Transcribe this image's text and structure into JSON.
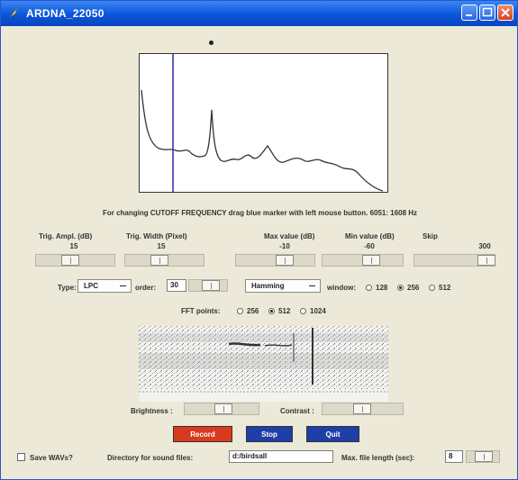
{
  "window": {
    "title": "ARDNA_22050",
    "colors": {
      "titlebar": "#0a55d8",
      "body": "#ece9d8",
      "marker": "#3b35a8"
    }
  },
  "spectrum": {
    "marker_dot_icon": "dot-icon",
    "hint": "For changing CUTOFF FREQUENCY drag blue marker with left mouse button.  6051:  1608 Hz"
  },
  "sliders": [
    {
      "label": "Trig. Ampl. (dB)",
      "value": "15"
    },
    {
      "label": "Trig. Width (Pixel)",
      "value": "15"
    },
    {
      "label": "Max value (dB)",
      "value": "-10"
    },
    {
      "label": "Min value (dB)",
      "value": "-60"
    },
    {
      "label": "Skip",
      "value": "300"
    }
  ],
  "lpc_row": {
    "type_label": "Type:",
    "type_value": "LPC",
    "order_label": "order:",
    "order_value": "30",
    "window_value": "Hamming",
    "window_label": "window:",
    "window_options": [
      "128",
      "256",
      "512"
    ],
    "window_selected": "256"
  },
  "fft": {
    "label": "FFT points:",
    "options": [
      "256",
      "512",
      "1024"
    ],
    "selected": "512"
  },
  "brightness_label": "Brightness :",
  "contrast_label": "Contrast :",
  "buttons": {
    "record": "Record",
    "stop": "Stop",
    "quit": "Quit",
    "record_color": "#d93a1e",
    "stop_color": "#1f3fa8",
    "quit_color": "#1f3fa8"
  },
  "footer": {
    "save_label": "Save WAVs?",
    "directory_label": "Directory for sound files:",
    "directory_value": "d:/birdsall",
    "maxlen_label": "Max. file length (sec):",
    "maxlen_value": "8"
  }
}
